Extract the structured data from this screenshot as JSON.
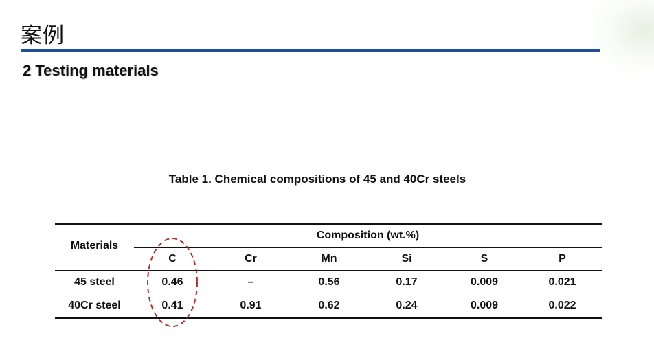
{
  "slide": {
    "title": "案例",
    "section_heading": "2 Testing materials"
  },
  "table": {
    "caption": "Table 1. Chemical compositions of 45 and 40Cr steels",
    "row_header": "Materials",
    "group_header": "Composition (wt.%)",
    "columns": [
      "C",
      "Cr",
      "Mn",
      "Si",
      "S",
      "P"
    ],
    "rows": [
      {
        "material": "45 steel",
        "values": [
          "0.46",
          "–",
          "0.56",
          "0.17",
          "0.009",
          "0.021"
        ]
      },
      {
        "material": "40Cr steel",
        "values": [
          "0.41",
          "0.91",
          "0.62",
          "0.24",
          "0.009",
          "0.022"
        ]
      }
    ]
  },
  "colors": {
    "title_rule": "#1f4e9c",
    "highlight_ellipse": "#c0282d"
  }
}
